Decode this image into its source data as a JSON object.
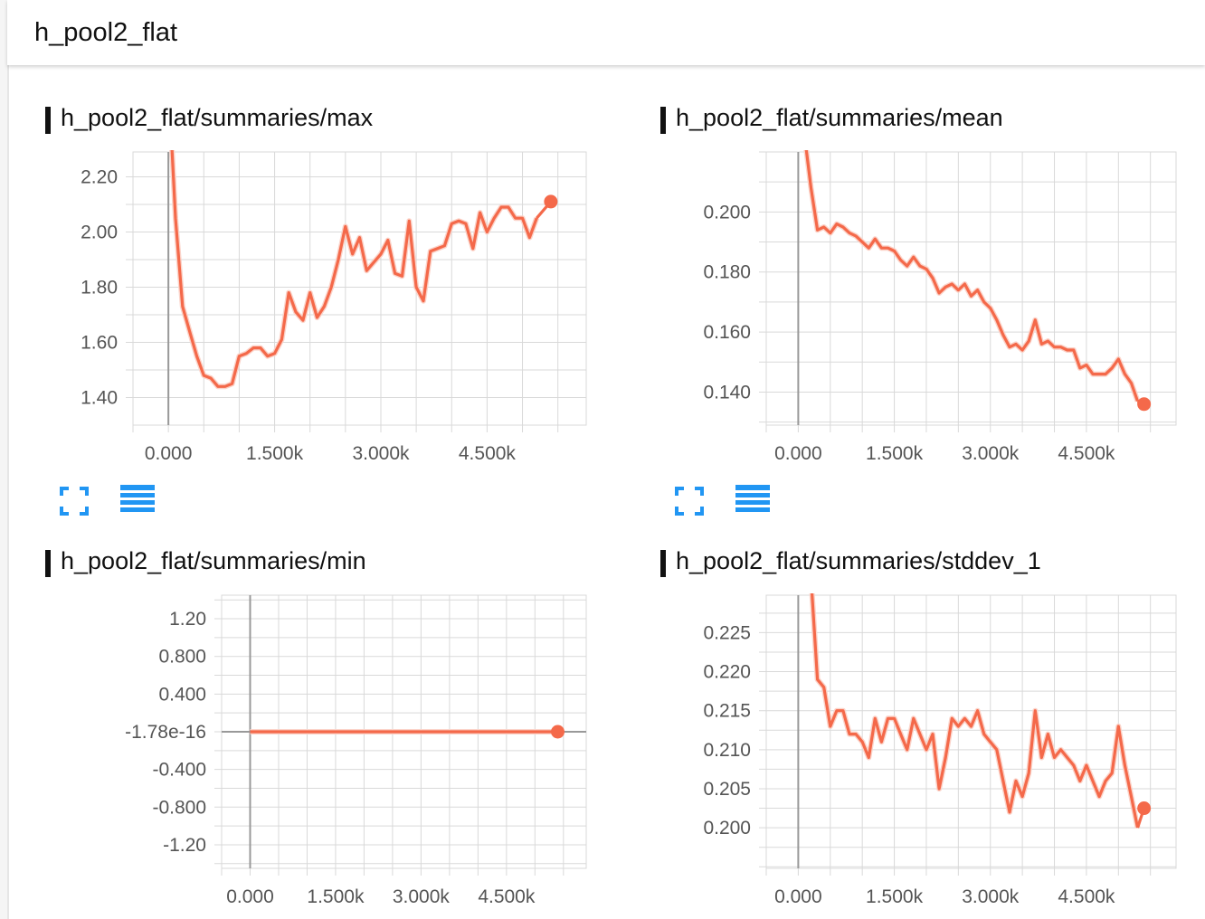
{
  "group": {
    "title": "h_pool2_flat"
  },
  "colors": {
    "line": "#f4694a",
    "line_light": "#fbd3c9",
    "grid": "#d9d9d9",
    "axis": "#999999",
    "icon": "#2196f3"
  },
  "icons": {
    "expand": "expand-icon",
    "data_table": "data-table-icon"
  },
  "charts": [
    {
      "title": "h_pool2_flat/summaries/max"
    },
    {
      "title": "h_pool2_flat/summaries/mean"
    },
    {
      "title": "h_pool2_flat/summaries/min"
    },
    {
      "title": "h_pool2_flat/summaries/stddev_1"
    }
  ],
  "chart_data": [
    {
      "type": "line",
      "title": "h_pool2_flat/summaries/max",
      "xlim": [
        -500,
        5900
      ],
      "ylim": [
        1.3,
        2.29
      ],
      "x_ticks": [
        0,
        1500,
        3000,
        4500
      ],
      "x_tick_labels": [
        "0.000",
        "1.500k",
        "3.000k",
        "4.500k"
      ],
      "y_ticks": [
        1.4,
        1.6,
        1.8,
        2.0,
        2.2
      ],
      "y_tick_labels": [
        "1.40",
        "1.60",
        "1.80",
        "2.00",
        "2.20"
      ],
      "grid": true,
      "series": [
        {
          "x": [
            50,
            100,
            200,
            300,
            400,
            500,
            600,
            700,
            800,
            900,
            1000,
            1100,
            1200,
            1300,
            1400,
            1500,
            1600,
            1700,
            1800,
            1900,
            2000,
            2100,
            2200,
            2300,
            2400,
            2500,
            2600,
            2700,
            2800,
            2900,
            3000,
            3100,
            3200,
            3300,
            3400,
            3500,
            3600,
            3700,
            3800,
            3900,
            4000,
            4100,
            4200,
            4300,
            4400,
            4500,
            4600,
            4700,
            4800,
            4900,
            5000,
            5100,
            5200
          ],
          "values": [
            2.3,
            2.05,
            1.73,
            1.64,
            1.55,
            1.48,
            1.47,
            1.44,
            1.44,
            1.45,
            1.55,
            1.56,
            1.58,
            1.58,
            1.55,
            1.56,
            1.61,
            1.78,
            1.71,
            1.68,
            1.78,
            1.69,
            1.73,
            1.8,
            1.9,
            2.02,
            1.92,
            1.98,
            1.86,
            1.89,
            1.92,
            1.97,
            1.85,
            1.84,
            2.04,
            1.8,
            1.75,
            1.93,
            1.94,
            1.95,
            2.03,
            2.04,
            2.03,
            1.94,
            2.07,
            2.0,
            2.05,
            2.09,
            2.09,
            2.05,
            2.05,
            1.98,
            2.05
          ]
        }
      ],
      "last_point": {
        "x": 5400,
        "y": 2.11
      }
    },
    {
      "type": "line",
      "title": "h_pool2_flat/summaries/mean",
      "xlim": [
        -500,
        5900
      ],
      "ylim": [
        0.129,
        0.22
      ],
      "x_ticks": [
        0,
        1500,
        3000,
        4500
      ],
      "x_tick_labels": [
        "0.000",
        "1.500k",
        "3.000k",
        "4.500k"
      ],
      "y_ticks": [
        0.14,
        0.16,
        0.18,
        0.2
      ],
      "y_tick_labels": [
        "0.140",
        "0.160",
        "0.180",
        "0.200"
      ],
      "grid": true,
      "series": [
        {
          "x": [
            100,
            200,
            300,
            400,
            500,
            600,
            700,
            800,
            900,
            1000,
            1100,
            1200,
            1300,
            1400,
            1500,
            1600,
            1700,
            1800,
            1900,
            2000,
            2100,
            2200,
            2300,
            2400,
            2500,
            2600,
            2700,
            2800,
            2900,
            3000,
            3100,
            3200,
            3300,
            3400,
            3500,
            3600,
            3700,
            3800,
            3900,
            4000,
            4100,
            4200,
            4300,
            4400,
            4500,
            4600,
            4700,
            4800,
            4900,
            5000,
            5100,
            5200,
            5300
          ],
          "values": [
            0.225,
            0.208,
            0.194,
            0.195,
            0.193,
            0.196,
            0.195,
            0.193,
            0.192,
            0.19,
            0.188,
            0.191,
            0.188,
            0.188,
            0.187,
            0.184,
            0.182,
            0.185,
            0.182,
            0.181,
            0.178,
            0.173,
            0.175,
            0.176,
            0.174,
            0.176,
            0.172,
            0.174,
            0.17,
            0.168,
            0.164,
            0.159,
            0.155,
            0.156,
            0.154,
            0.157,
            0.164,
            0.156,
            0.157,
            0.155,
            0.155,
            0.154,
            0.154,
            0.148,
            0.149,
            0.146,
            0.146,
            0.146,
            0.148,
            0.151,
            0.146,
            0.143,
            0.137
          ]
        }
      ],
      "last_point": {
        "x": 5400,
        "y": 0.136
      }
    },
    {
      "type": "line",
      "title": "h_pool2_flat/summaries/min",
      "xlim": [
        -500,
        5900
      ],
      "ylim": [
        -1.45,
        1.45
      ],
      "x_ticks": [
        0,
        1500,
        3000,
        4500
      ],
      "x_tick_labels": [
        "0.000",
        "1.500k",
        "3.000k",
        "4.500k"
      ],
      "y_ticks": [
        1.2,
        0.8,
        0.4,
        -1.78e-16,
        -0.4,
        -0.8,
        -1.2
      ],
      "y_tick_labels": [
        "1.20",
        "0.800",
        "0.400",
        "-1.78e-16",
        "-0.400",
        "-0.800",
        "-1.20"
      ],
      "grid": true,
      "series": [
        {
          "x": [
            0,
            5400
          ],
          "values": [
            -1.78e-16,
            -1.78e-16
          ]
        }
      ],
      "last_point": {
        "x": 5400,
        "y": -1.78e-16
      }
    },
    {
      "type": "line",
      "title": "h_pool2_flat/summaries/stddev_1",
      "xlim": [
        -500,
        5900
      ],
      "ylim": [
        0.1948,
        0.2298
      ],
      "x_ticks": [
        0,
        1500,
        3000,
        4500
      ],
      "x_tick_labels": [
        "0.000",
        "1.500k",
        "3.000k",
        "4.500k"
      ],
      "y_ticks": [
        0.2,
        0.205,
        0.21,
        0.215,
        0.22,
        0.225
      ],
      "y_tick_labels": [
        "0.200",
        "0.205",
        "0.210",
        "0.215",
        "0.220",
        "0.225"
      ],
      "grid": true,
      "series": [
        {
          "x": [
            200,
            300,
            400,
            500,
            600,
            700,
            800,
            900,
            1000,
            1100,
            1200,
            1300,
            1400,
            1500,
            1600,
            1700,
            1800,
            1900,
            2000,
            2100,
            2200,
            2300,
            2400,
            2500,
            2600,
            2700,
            2800,
            2900,
            3000,
            3100,
            3200,
            3300,
            3400,
            3500,
            3600,
            3700,
            3800,
            3900,
            4000,
            4100,
            4200,
            4300,
            4400,
            4500,
            4600,
            4700,
            4800,
            4900,
            5000,
            5100,
            5200,
            5300
          ],
          "values": [
            0.232,
            0.219,
            0.218,
            0.213,
            0.215,
            0.215,
            0.212,
            0.212,
            0.211,
            0.209,
            0.214,
            0.211,
            0.214,
            0.214,
            0.212,
            0.21,
            0.214,
            0.212,
            0.21,
            0.212,
            0.205,
            0.209,
            0.214,
            0.213,
            0.214,
            0.213,
            0.215,
            0.212,
            0.211,
            0.21,
            0.206,
            0.202,
            0.206,
            0.204,
            0.207,
            0.215,
            0.209,
            0.212,
            0.209,
            0.21,
            0.209,
            0.208,
            0.206,
            0.208,
            0.206,
            0.204,
            0.206,
            0.207,
            0.213,
            0.208,
            0.204,
            0.2
          ]
        }
      ],
      "last_point": {
        "x": 5400,
        "y": 0.2025
      }
    }
  ]
}
